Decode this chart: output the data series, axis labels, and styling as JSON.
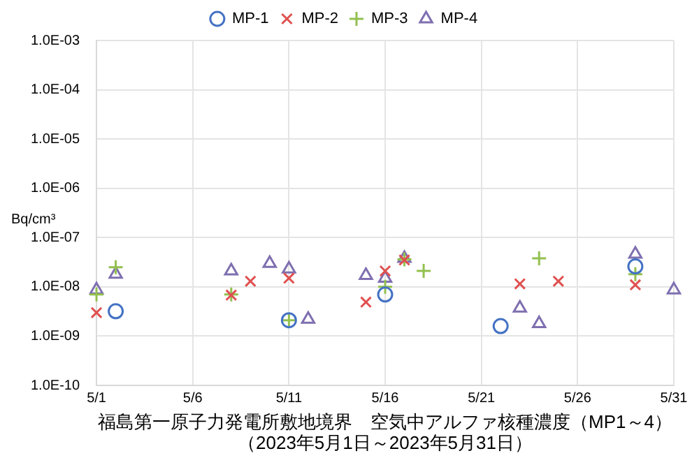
{
  "chart_data": {
    "type": "scatter",
    "title": "福島第一原子力発電所敷地境界　空気中アルファ核種濃度（MP1～4）",
    "subtitle": "（2023年5月1日～2023年5月31日）",
    "ylabel": "Bq/cm³",
    "log": "y",
    "grid": true,
    "legend": "top",
    "xlim": [
      "2023-05-01",
      "2023-05-31"
    ],
    "xticks": [
      {
        "value": "2023-05-01",
        "label": "5/1"
      },
      {
        "value": "2023-05-06",
        "label": "5/6"
      },
      {
        "value": "2023-05-11",
        "label": "5/11"
      },
      {
        "value": "2023-05-16",
        "label": "5/16"
      },
      {
        "value": "2023-05-21",
        "label": "5/21"
      },
      {
        "value": "2023-05-26",
        "label": "5/26"
      },
      {
        "value": "2023-05-31",
        "label": "5/31"
      }
    ],
    "ylim": [
      1e-10,
      0.001
    ],
    "yticks": [
      {
        "value": 1e-10,
        "label": "1.0E-10"
      },
      {
        "value": 1e-09,
        "label": "1.0E-09"
      },
      {
        "value": 1e-08,
        "label": "1.0E-08"
      },
      {
        "value": 1e-07,
        "label": "1.0E-07"
      },
      {
        "value": 1e-06,
        "label": "1.0E-06"
      },
      {
        "value": 1e-05,
        "label": "1.0E-05"
      },
      {
        "value": 0.0001,
        "label": "1.0E-04"
      },
      {
        "value": 0.001,
        "label": "1.0E-03"
      }
    ],
    "series": [
      {
        "name": "MP-1",
        "color": "#4472c4",
        "marker": "circle",
        "x": [
          "2023-05-02",
          "2023-05-11",
          "2023-05-16",
          "2023-05-22",
          "2023-05-29"
        ],
        "values": [
          3.2e-09,
          2.1e-09,
          7e-09,
          1.6e-09,
          2.6e-08
        ]
      },
      {
        "name": "MP-2",
        "color": "#e05050",
        "marker": "x",
        "x": [
          "2023-05-01",
          "2023-05-08",
          "2023-05-09",
          "2023-05-11",
          "2023-05-15",
          "2023-05-16",
          "2023-05-17",
          "2023-05-23",
          "2023-05-25",
          "2023-05-29"
        ],
        "values": [
          3e-09,
          6.8e-09,
          1.3e-08,
          1.5e-08,
          4.9e-09,
          2.1e-08,
          3.5e-08,
          1.15e-08,
          1.3e-08,
          1.1e-08
        ]
      },
      {
        "name": "MP-3",
        "color": "#92c050",
        "marker": "cross",
        "x": [
          "2023-05-01",
          "2023-05-02",
          "2023-05-08",
          "2023-05-11",
          "2023-05-16",
          "2023-05-17",
          "2023-05-18",
          "2023-05-24",
          "2023-05-29"
        ],
        "values": [
          7e-09,
          2.5e-08,
          7e-09,
          2.1e-09,
          1e-08,
          3.6e-08,
          2.1e-08,
          3.8e-08,
          1.8e-08
        ]
      },
      {
        "name": "MP-4",
        "color": "#7f6fb0",
        "marker": "triangle",
        "x": [
          "2023-05-01",
          "2023-05-02",
          "2023-05-08",
          "2023-05-10",
          "2023-05-11",
          "2023-05-12",
          "2023-05-15",
          "2023-05-16",
          "2023-05-17",
          "2023-05-23",
          "2023-05-24",
          "2023-05-29",
          "2023-05-31"
        ],
        "values": [
          8.7e-09,
          1.8e-08,
          2.1e-08,
          3e-08,
          2.3e-08,
          2.2e-09,
          1.7e-08,
          1.5e-08,
          3.8e-08,
          3.7e-09,
          1.8e-09,
          4.6e-08,
          8.7e-09
        ]
      }
    ]
  }
}
